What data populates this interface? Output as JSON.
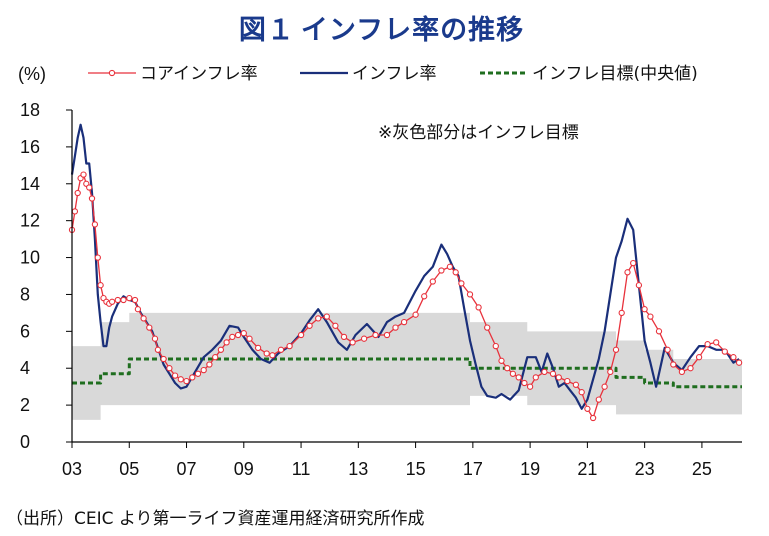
{
  "figure": {
    "number": "図１",
    "title": "インフレ率の推移",
    "unit_label": "(%)",
    "note": "※灰色部分はインフレ目標",
    "source": "（出所）CEIC より第一ライフ資産運用経済研究所作成"
  },
  "chart_data": {
    "type": "line",
    "title": "インフレ率の推移",
    "ylabel": "(%)",
    "xlabel": "",
    "ylim": [
      0,
      18
    ],
    "xlim": [
      2003.0,
      2026.4
    ],
    "grid": false,
    "legend_position": "top",
    "y_ticks": [
      "0",
      "2",
      "4",
      "6",
      "8",
      "10",
      "12",
      "14",
      "16",
      "18"
    ],
    "x_ticks": [
      {
        "x": 2003,
        "label": "03"
      },
      {
        "x": 2005,
        "label": "05"
      },
      {
        "x": 2007,
        "label": "07"
      },
      {
        "x": 2009,
        "label": "09"
      },
      {
        "x": 2011,
        "label": "11"
      },
      {
        "x": 2013,
        "label": "13"
      },
      {
        "x": 2015,
        "label": "15"
      },
      {
        "x": 2017,
        "label": "17"
      },
      {
        "x": 2019,
        "label": "19"
      },
      {
        "x": 2021,
        "label": "21"
      },
      {
        "x": 2023,
        "label": "23"
      },
      {
        "x": 2025,
        "label": "25"
      }
    ],
    "target_band": {
      "name": "インフレ目標",
      "color": "#d9d9d9",
      "x": [
        2003.0,
        2004.0,
        2004.0,
        2005.0,
        2005.0,
        2016.9,
        2016.9,
        2018.9,
        2018.9,
        2022.0,
        2022.0,
        2023.0,
        2023.0,
        2024.0,
        2024.0,
        2025.4,
        2025.4,
        2026.4
      ],
      "upper": [
        5.2,
        5.2,
        6.5,
        6.5,
        7.0,
        7.0,
        6.5,
        6.5,
        6.0,
        6.0,
        5.5,
        5.5,
        5.0,
        5.0,
        4.5,
        4.5,
        4.5,
        4.5
      ],
      "lower": [
        1.2,
        1.2,
        2.0,
        2.0,
        2.0,
        2.0,
        2.5,
        2.5,
        2.0,
        2.0,
        1.5,
        1.5,
        1.5,
        1.5,
        1.5,
        1.5,
        1.5,
        1.5
      ]
    },
    "series": [
      {
        "name": "コアインフレ率",
        "color": "#e8323c",
        "marker": "circle",
        "x": [
          2003.0,
          2003.1,
          2003.2,
          2003.3,
          2003.4,
          2003.5,
          2003.6,
          2003.7,
          2003.8,
          2003.9,
          2004.0,
          2004.1,
          2004.2,
          2004.3,
          2004.4,
          2004.6,
          2004.8,
          2005.0,
          2005.2,
          2005.3,
          2005.5,
          2005.7,
          2005.9,
          2006.0,
          2006.2,
          2006.4,
          2006.6,
          2006.8,
          2007.0,
          2007.2,
          2007.4,
          2007.6,
          2007.8,
          2008.0,
          2008.2,
          2008.4,
          2008.6,
          2008.8,
          2009.0,
          2009.2,
          2009.5,
          2009.8,
          2010.0,
          2010.3,
          2010.6,
          2011.0,
          2011.3,
          2011.6,
          2011.9,
          2012.2,
          2012.5,
          2012.8,
          2013.2,
          2013.6,
          2014.0,
          2014.3,
          2014.6,
          2015.0,
          2015.3,
          2015.6,
          2015.9,
          2016.2,
          2016.4,
          2016.6,
          2016.9,
          2017.2,
          2017.5,
          2017.8,
          2018.0,
          2018.2,
          2018.4,
          2018.6,
          2018.8,
          2019.0,
          2019.2,
          2019.5,
          2019.8,
          2020.0,
          2020.3,
          2020.6,
          2020.8,
          2021.0,
          2021.2,
          2021.4,
          2021.6,
          2021.8,
          2022.0,
          2022.2,
          2022.4,
          2022.6,
          2022.8,
          2023.0,
          2023.2,
          2023.5,
          2023.8,
          2024.0,
          2024.3,
          2024.6,
          2024.9,
          2025.2,
          2025.5,
          2025.8,
          2026.1,
          2026.3
        ],
        "values": [
          11.5,
          12.5,
          13.5,
          14.3,
          14.5,
          14.0,
          13.8,
          13.2,
          11.8,
          10.0,
          8.5,
          7.8,
          7.6,
          7.5,
          7.6,
          7.7,
          7.7,
          7.8,
          7.7,
          7.2,
          6.7,
          6.2,
          5.6,
          5.0,
          4.5,
          4.0,
          3.6,
          3.4,
          3.3,
          3.5,
          3.7,
          3.9,
          4.2,
          4.6,
          5.0,
          5.4,
          5.7,
          5.8,
          5.9,
          5.6,
          5.1,
          4.8,
          4.7,
          5.0,
          5.2,
          5.8,
          6.3,
          6.7,
          6.8,
          6.3,
          5.7,
          5.4,
          5.6,
          5.8,
          5.8,
          6.2,
          6.5,
          6.9,
          7.9,
          8.7,
          9.3,
          9.5,
          9.2,
          8.6,
          8.0,
          7.3,
          6.2,
          5.2,
          4.4,
          4.0,
          3.7,
          3.5,
          3.2,
          3.0,
          3.5,
          3.8,
          3.7,
          3.5,
          3.3,
          3.1,
          2.7,
          1.8,
          1.3,
          2.3,
          3.0,
          3.8,
          5.0,
          7.0,
          9.2,
          9.7,
          8.5,
          7.2,
          6.8,
          6.0,
          5.0,
          4.2,
          3.8,
          4.0,
          4.6,
          5.3,
          5.4,
          4.9,
          4.6,
          4.3
        ]
      },
      {
        "name": "インフレ率",
        "color": "#1a2f7a",
        "marker": "none",
        "x": [
          2003.0,
          2003.1,
          2003.2,
          2003.3,
          2003.4,
          2003.5,
          2003.6,
          2003.7,
          2003.8,
          2003.9,
          2004.0,
          2004.1,
          2004.2,
          2004.3,
          2004.4,
          2004.6,
          2004.8,
          2005.0,
          2005.2,
          2005.4,
          2005.6,
          2005.8,
          2006.0,
          2006.2,
          2006.4,
          2006.6,
          2006.8,
          2007.0,
          2007.3,
          2007.6,
          2007.9,
          2008.2,
          2008.5,
          2008.8,
          2009.0,
          2009.3,
          2009.6,
          2009.9,
          2010.2,
          2010.6,
          2011.0,
          2011.3,
          2011.6,
          2011.9,
          2012.3,
          2012.6,
          2012.9,
          2013.3,
          2013.7,
          2014.0,
          2014.3,
          2014.6,
          2015.0,
          2015.3,
          2015.6,
          2015.9,
          2016.1,
          2016.3,
          2016.5,
          2016.7,
          2016.9,
          2017.1,
          2017.3,
          2017.5,
          2017.8,
          2018.0,
          2018.3,
          2018.6,
          2018.9,
          2019.2,
          2019.4,
          2019.6,
          2019.8,
          2020.0,
          2020.2,
          2020.4,
          2020.6,
          2020.8,
          2021.0,
          2021.2,
          2021.4,
          2021.6,
          2021.8,
          2022.0,
          2022.2,
          2022.4,
          2022.6,
          2022.8,
          2023.0,
          2023.2,
          2023.4,
          2023.7,
          2024.0,
          2024.3,
          2024.6,
          2024.9,
          2025.2,
          2025.5,
          2025.8,
          2026.1,
          2026.3
        ],
        "values": [
          14.5,
          15.5,
          16.5,
          17.2,
          16.5,
          15.1,
          15.1,
          13.5,
          11.0,
          8.0,
          6.5,
          5.2,
          5.2,
          6.2,
          6.8,
          7.5,
          7.9,
          7.7,
          7.6,
          7.0,
          6.5,
          6.0,
          5.1,
          4.2,
          3.7,
          3.2,
          2.9,
          3.0,
          3.8,
          4.6,
          5.0,
          5.5,
          6.3,
          6.2,
          5.7,
          5.0,
          4.5,
          4.3,
          4.8,
          5.2,
          5.9,
          6.6,
          7.2,
          6.5,
          5.4,
          5.0,
          5.8,
          6.4,
          5.7,
          6.5,
          6.8,
          7.0,
          8.2,
          9.0,
          9.5,
          10.7,
          10.2,
          9.5,
          9.0,
          7.2,
          5.5,
          4.2,
          3.0,
          2.5,
          2.4,
          2.6,
          2.3,
          2.8,
          4.6,
          4.6,
          3.8,
          4.8,
          4.0,
          3.0,
          3.2,
          2.8,
          2.4,
          1.8,
          2.3,
          3.4,
          4.5,
          6.0,
          8.0,
          10.0,
          10.9,
          12.1,
          11.5,
          8.5,
          5.5,
          4.3,
          3.0,
          5.1,
          4.3,
          3.9,
          4.6,
          5.2,
          5.2,
          5.0,
          5.0,
          4.3,
          4.5
        ]
      },
      {
        "name": "インフレ目標(中央値)",
        "color": "#1f6e1f",
        "marker": "none",
        "dash": true,
        "x": [
          2003.0,
          2004.0,
          2004.0,
          2005.0,
          2005.0,
          2016.9,
          2016.9,
          2018.9,
          2018.9,
          2022.0,
          2022.0,
          2023.0,
          2023.0,
          2024.0,
          2024.0,
          2025.4,
          2025.4,
          2026.4
        ],
        "values": [
          3.2,
          3.2,
          3.7,
          3.7,
          4.5,
          4.5,
          4.0,
          4.0,
          4.0,
          4.0,
          3.5,
          3.5,
          3.2,
          3.2,
          3.0,
          3.0,
          3.0,
          3.0
        ]
      }
    ]
  }
}
